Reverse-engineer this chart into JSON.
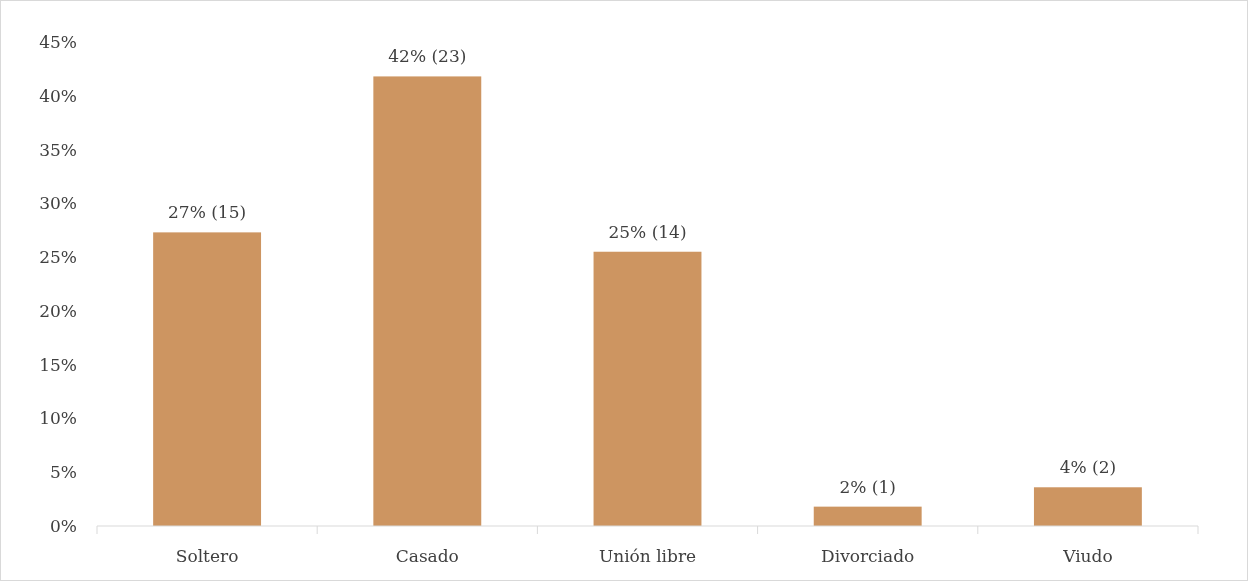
{
  "chart_data": {
    "type": "bar",
    "categories": [
      "Soltero",
      "Casado",
      "Unión libre",
      "Divorciado",
      "Viudo"
    ],
    "values": [
      27.3,
      41.8,
      25.5,
      1.8,
      3.6
    ],
    "value_labels": [
      "27% (15)",
      "42% (23)",
      "25% (14)",
      "2% (1)",
      "4% (2)"
    ],
    "color": "#cd9561",
    "ylim": [
      0,
      45
    ],
    "yticks": [
      {
        "value": 0,
        "label": "0%"
      },
      {
        "value": 5,
        "label": "5%"
      },
      {
        "value": 10,
        "label": "10%"
      },
      {
        "value": 15,
        "label": "15%"
      },
      {
        "value": 20,
        "label": "20%"
      },
      {
        "value": 25,
        "label": "25%"
      },
      {
        "value": 30,
        "label": "30%"
      },
      {
        "value": 35,
        "label": "35%"
      },
      {
        "value": 40,
        "label": "40%"
      },
      {
        "value": 45,
        "label": "45%"
      }
    ],
    "grid": false
  }
}
